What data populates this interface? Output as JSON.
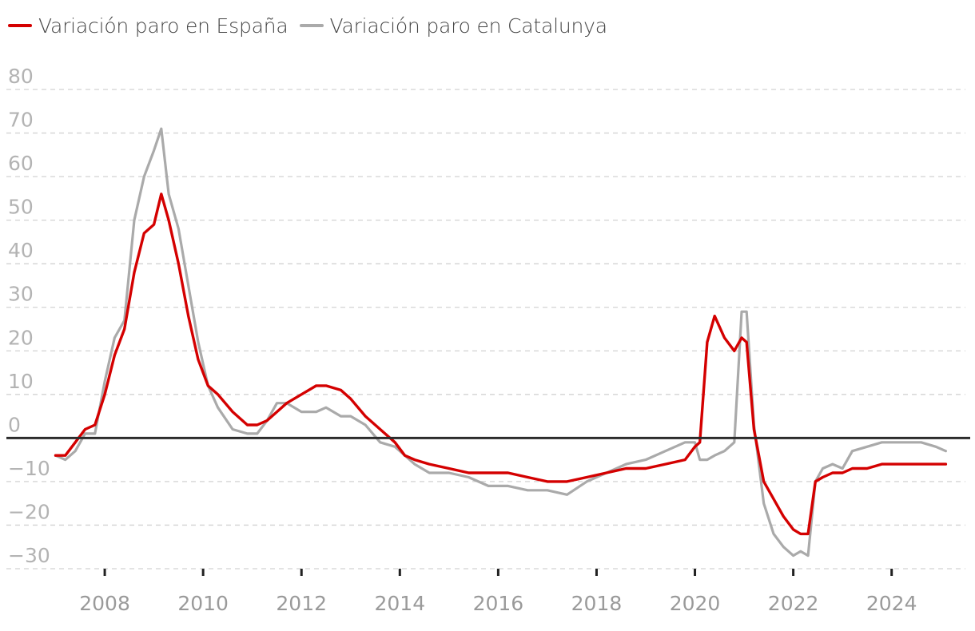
{
  "chart_data": {
    "type": "line",
    "title": "",
    "xlabel": "",
    "ylabel": "",
    "ylim": [
      -30,
      80
    ],
    "xlim": [
      2006,
      2025.5
    ],
    "yticks": [
      80,
      70,
      60,
      50,
      40,
      30,
      20,
      10,
      0,
      -10,
      -20,
      -30
    ],
    "ytick_labels": [
      "80",
      "70",
      "60",
      "50",
      "40",
      "30",
      "20",
      "10",
      "0",
      "−10",
      "−20",
      "−30"
    ],
    "xticks": [
      2008,
      2010,
      2012,
      2014,
      2016,
      2018,
      2020,
      2022,
      2024
    ],
    "xtick_labels": [
      "2008",
      "2010",
      "2012",
      "2014",
      "2016",
      "2018",
      "2020",
      "2022",
      "2024"
    ],
    "grid": true,
    "legend_position": "top-left",
    "series": [
      {
        "name": "Variación paro en España",
        "color": "#d40000",
        "x": [
          2007.0,
          2007.2,
          2007.4,
          2007.6,
          2007.8,
          2008.0,
          2008.2,
          2008.4,
          2008.6,
          2008.8,
          2009.0,
          2009.15,
          2009.3,
          2009.5,
          2009.7,
          2009.9,
          2010.1,
          2010.3,
          2010.6,
          2010.9,
          2011.1,
          2011.3,
          2011.5,
          2011.7,
          2012.0,
          2012.3,
          2012.5,
          2012.8,
          2013.0,
          2013.3,
          2013.6,
          2013.9,
          2014.1,
          2014.3,
          2014.6,
          2015.0,
          2015.4,
          2015.8,
          2016.2,
          2016.6,
          2017.0,
          2017.4,
          2017.8,
          2018.2,
          2018.6,
          2019.0,
          2019.4,
          2019.8,
          2020.0,
          2020.1,
          2020.25,
          2020.4,
          2020.6,
          2020.8,
          2020.95,
          2021.05,
          2021.2,
          2021.4,
          2021.6,
          2021.8,
          2022.0,
          2022.15,
          2022.3,
          2022.45,
          2022.6,
          2022.8,
          2023.0,
          2023.2,
          2023.5,
          2023.8,
          2024.0,
          2024.3,
          2024.6,
          2024.9,
          2025.1
        ],
        "y": [
          -4,
          -4,
          -1,
          2,
          3,
          10,
          19,
          25,
          38,
          47,
          49,
          56,
          50,
          40,
          28,
          18,
          12,
          10,
          6,
          3,
          3,
          4,
          6,
          8,
          10,
          12,
          12,
          11,
          9,
          5,
          2,
          -1,
          -4,
          -5,
          -6,
          -7,
          -8,
          -8,
          -8,
          -9,
          -10,
          -10,
          -9,
          -8,
          -7,
          -7,
          -6,
          -5,
          -2,
          -1,
          22,
          28,
          23,
          20,
          23,
          22,
          2,
          -10,
          -14,
          -18,
          -21,
          -22,
          -22,
          -10,
          -9,
          -8,
          -8,
          -7,
          -7,
          -6,
          -6,
          -6,
          -6,
          -6,
          -6
        ]
      },
      {
        "name": "Variación paro en Catalunya",
        "color": "#aaaaaa",
        "x": [
          2007.0,
          2007.2,
          2007.4,
          2007.6,
          2007.8,
          2008.0,
          2008.2,
          2008.4,
          2008.6,
          2008.8,
          2009.0,
          2009.15,
          2009.3,
          2009.5,
          2009.7,
          2009.9,
          2010.1,
          2010.3,
          2010.6,
          2010.9,
          2011.1,
          2011.3,
          2011.5,
          2011.7,
          2012.0,
          2012.3,
          2012.5,
          2012.8,
          2013.0,
          2013.3,
          2013.6,
          2013.9,
          2014.1,
          2014.3,
          2014.6,
          2015.0,
          2015.4,
          2015.8,
          2016.2,
          2016.6,
          2017.0,
          2017.4,
          2017.8,
          2018.2,
          2018.6,
          2019.0,
          2019.4,
          2019.8,
          2020.0,
          2020.1,
          2020.25,
          2020.4,
          2020.6,
          2020.8,
          2020.95,
          2021.05,
          2021.2,
          2021.4,
          2021.6,
          2021.8,
          2022.0,
          2022.15,
          2022.3,
          2022.45,
          2022.6,
          2022.8,
          2023.0,
          2023.2,
          2023.5,
          2023.8,
          2024.0,
          2024.3,
          2024.6,
          2024.9,
          2025.1
        ],
        "y": [
          -4,
          -5,
          -3,
          1,
          1,
          13,
          23,
          27,
          50,
          60,
          66,
          71,
          56,
          48,
          35,
          22,
          12,
          7,
          2,
          1,
          1,
          4,
          8,
          8,
          6,
          6,
          7,
          5,
          5,
          3,
          -1,
          -2,
          -4,
          -6,
          -8,
          -8,
          -9,
          -11,
          -11,
          -12,
          -12,
          -13,
          -10,
          -8,
          -6,
          -5,
          -3,
          -1,
          -1,
          -5,
          -5,
          -4,
          -3,
          -1,
          29,
          29,
          3,
          -15,
          -22,
          -25,
          -27,
          -26,
          -27,
          -10,
          -7,
          -6,
          -7,
          -3,
          -2,
          -1,
          -1,
          -1,
          -1,
          -2,
          -3
        ]
      }
    ]
  }
}
